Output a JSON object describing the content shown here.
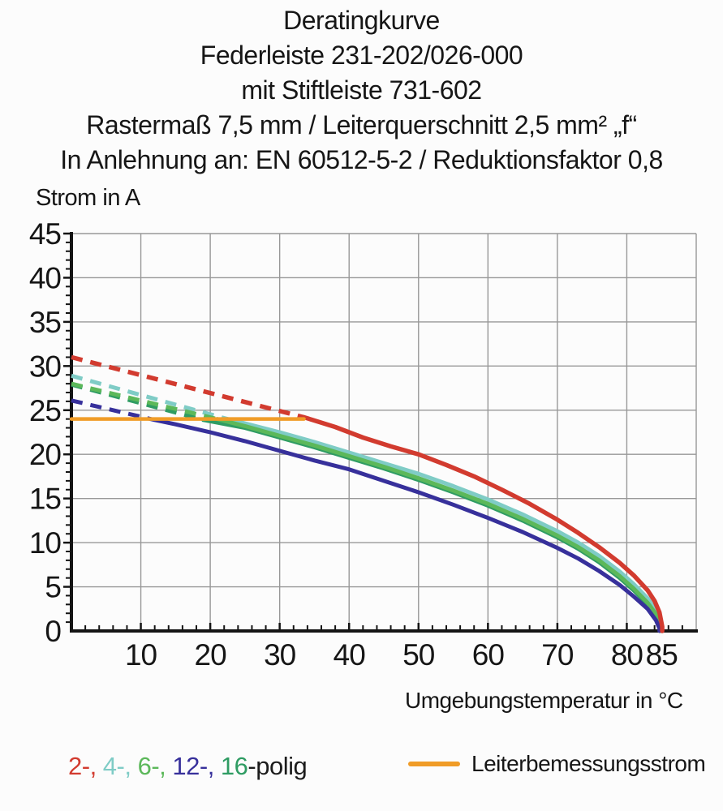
{
  "title": {
    "lines": [
      "Deratingkurve",
      "Federleiste 231-202/026-000",
      "mit Stiftleiste 731-602",
      "Rastermaß 7,5 mm / Leiterquerschnitt 2,5 mm² „f“",
      "In Anlehnung an: EN 60512-5-2 / Reduktionsfaktor 0,8"
    ]
  },
  "chart_data": {
    "type": "line",
    "title": "Deratingkurve",
    "xlabel": "Umgebungstemperatur in °C",
    "ylabel": "Strom in A",
    "xlim": [
      0,
      90
    ],
    "ylim": [
      0,
      45
    ],
    "grid": "on",
    "x_gridline_step": 10,
    "y_gridline_step": 5,
    "x_minor_step": 2,
    "y_minor_step": 1,
    "x_ticks": [
      10,
      20,
      30,
      40,
      50,
      60,
      70,
      80,
      85
    ],
    "y_ticks": [
      0,
      5,
      10,
      15,
      20,
      25,
      30,
      35,
      40,
      45
    ],
    "series": [
      {
        "name": "4-polig",
        "color": "#7fccc6",
        "width": 5,
        "dashed": [
          [
            0,
            28.9
          ],
          [
            22.5,
            24.0
          ]
        ],
        "solid": [
          [
            22.5,
            24.0
          ],
          [
            25,
            23.5
          ],
          [
            30,
            22.5
          ],
          [
            35,
            21.4
          ],
          [
            40,
            20.2
          ],
          [
            45,
            19.0
          ],
          [
            50,
            17.8
          ],
          [
            55,
            16.4
          ],
          [
            60,
            14.9
          ],
          [
            65,
            13.2
          ],
          [
            70,
            11.3
          ],
          [
            73,
            10.0
          ],
          [
            76,
            8.5
          ],
          [
            79,
            6.7
          ],
          [
            81,
            5.3
          ],
          [
            83,
            3.7
          ],
          [
            84.3,
            2.2
          ],
          [
            84.9,
            0.6
          ],
          [
            84.9,
            0
          ]
        ]
      },
      {
        "name": "16-polig",
        "color": "#2f9c63",
        "width": 5,
        "dashed": [
          [
            0,
            27.9
          ],
          [
            19,
            23.9
          ]
        ],
        "solid": [
          [
            19,
            23.9
          ],
          [
            25,
            23.0
          ],
          [
            30,
            21.9
          ],
          [
            35,
            20.8
          ],
          [
            40,
            19.6
          ],
          [
            45,
            18.4
          ],
          [
            50,
            17.1
          ],
          [
            55,
            15.7
          ],
          [
            60,
            14.2
          ],
          [
            65,
            12.5
          ],
          [
            70,
            10.6
          ],
          [
            73,
            9.3
          ],
          [
            76,
            7.8
          ],
          [
            79,
            6.0
          ],
          [
            81,
            4.6
          ],
          [
            83,
            3.0
          ],
          [
            84.3,
            1.6
          ],
          [
            84.8,
            0.3
          ],
          [
            84.8,
            0
          ]
        ]
      },
      {
        "name": "6-polig",
        "color": "#5cb85a",
        "width": 5,
        "dashed": [
          [
            0,
            28.0
          ],
          [
            21,
            24.0
          ]
        ],
        "solid": [
          [
            21,
            24.0
          ],
          [
            25,
            23.2
          ],
          [
            30,
            22.1
          ],
          [
            35,
            21.0
          ],
          [
            40,
            19.8
          ],
          [
            45,
            18.6
          ],
          [
            50,
            17.3
          ],
          [
            55,
            15.9
          ],
          [
            60,
            14.4
          ],
          [
            65,
            12.7
          ],
          [
            70,
            10.8
          ],
          [
            73,
            9.5
          ],
          [
            76,
            8.0
          ],
          [
            79,
            6.2
          ],
          [
            81,
            4.8
          ],
          [
            83,
            3.2
          ],
          [
            84.3,
            1.8
          ],
          [
            84.8,
            0.4
          ],
          [
            84.8,
            0
          ]
        ]
      },
      {
        "name": "12-polig",
        "color": "#37309b",
        "width": 5,
        "dashed": [
          [
            0,
            26.1
          ],
          [
            12,
            23.9
          ]
        ],
        "solid": [
          [
            12,
            23.9
          ],
          [
            15,
            23.4
          ],
          [
            20,
            22.5
          ],
          [
            25,
            21.5
          ],
          [
            30,
            20.4
          ],
          [
            35,
            19.3
          ],
          [
            40,
            18.3
          ],
          [
            45,
            17.0
          ],
          [
            50,
            15.7
          ],
          [
            55,
            14.3
          ],
          [
            60,
            12.8
          ],
          [
            65,
            11.2
          ],
          [
            70,
            9.4
          ],
          [
            73,
            8.2
          ],
          [
            76,
            6.8
          ],
          [
            79,
            5.2
          ],
          [
            81,
            3.9
          ],
          [
            83,
            2.5
          ],
          [
            84.2,
            1.2
          ],
          [
            84.7,
            0.3
          ],
          [
            84.7,
            0
          ]
        ]
      },
      {
        "name": "2-polig",
        "color": "#d23b2f",
        "width": 5.5,
        "dashed": [
          [
            0,
            31.0
          ],
          [
            33.5,
            24.2
          ]
        ],
        "solid": [
          [
            33.5,
            24.2
          ],
          [
            38,
            23.1
          ],
          [
            42,
            21.9
          ],
          [
            46,
            20.9
          ],
          [
            50,
            20.0
          ],
          [
            54,
            18.8
          ],
          [
            58,
            17.5
          ],
          [
            62,
            16.0
          ],
          [
            66,
            14.4
          ],
          [
            70,
            12.6
          ],
          [
            73,
            11.1
          ],
          [
            76,
            9.5
          ],
          [
            79,
            7.7
          ],
          [
            81,
            6.3
          ],
          [
            83,
            4.6
          ],
          [
            84,
            3.4
          ],
          [
            84.7,
            2.1
          ],
          [
            85.1,
            0.5
          ],
          [
            85.1,
            0
          ]
        ]
      }
    ],
    "reference_line": {
      "name": "Leiterbemessungsstrom",
      "color": "#f09c27",
      "value": 24,
      "x_range": [
        0,
        33.5
      ],
      "width": 4.5
    }
  },
  "legend": {
    "poles": {
      "segments": [
        {
          "text": "2-,",
          "color": "#d23b2f"
        },
        {
          "text": " 4-,",
          "color": "#7fccc6"
        },
        {
          "text": " 6-,",
          "color": "#5cb85a"
        },
        {
          "text": " 12-,",
          "color": "#37309b"
        },
        {
          "text": " 16",
          "color": "#2f9c63"
        },
        {
          "text": "-polig",
          "color": "#1c1c1c"
        }
      ]
    },
    "reference": {
      "label": "Leiterbemessungsstrom",
      "swatch_color": "#f09c27"
    }
  },
  "colors": {
    "background": "#fcfcfc",
    "grid": "#989898",
    "axis": "#141414",
    "text": "#161616"
  }
}
